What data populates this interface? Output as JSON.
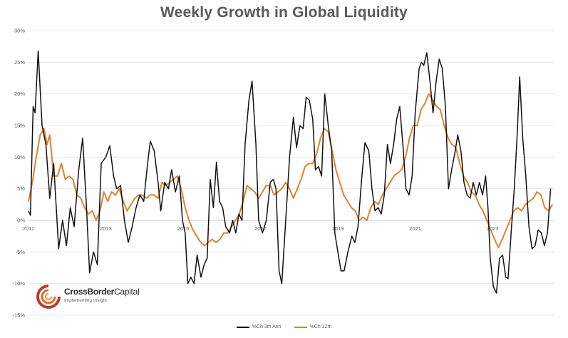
{
  "title": "Weekly Growth in Global Liquidity",
  "logo": {
    "name_bold": "CrossBorder",
    "name_light": "Capital",
    "tagline": "Implementing Insight"
  },
  "colors": {
    "series_3m": "#111111",
    "series_12m": "#e0812e",
    "logo_red": "#c0392b",
    "logo_orange": "#f0a050"
  },
  "chart_data": {
    "type": "line",
    "title": "Weekly Growth in Global Liquidity",
    "xlabel": "",
    "ylabel": "",
    "ylim": [
      -15,
      30
    ],
    "xlim": [
      2011,
      2024.6
    ],
    "y_tick_labels": [
      "-15%",
      "-10%",
      "-5%",
      "0%",
      "5%",
      "10%",
      "15%",
      "20%",
      "25%",
      "30%"
    ],
    "y_tick_values": [
      -15,
      -10,
      -5,
      0,
      5,
      10,
      15,
      20,
      25,
      30
    ],
    "x_tick_labels": [
      "2011",
      "2013",
      "2015",
      "2017",
      "2019",
      "2021",
      "2023"
    ],
    "x_tick_values": [
      2011,
      2013,
      2015,
      2017,
      2019,
      2021,
      2023
    ],
    "legend_position": "bottom-center",
    "grid": true,
    "series": [
      {
        "name": "%Ch 3m Ann",
        "color": "#111111",
        "points": [
          [
            2011.0,
            1.5
          ],
          [
            2011.05,
            0.8
          ],
          [
            2011.12,
            18
          ],
          [
            2011.17,
            17
          ],
          [
            2011.25,
            26.8
          ],
          [
            2011.35,
            15
          ],
          [
            2011.45,
            12
          ],
          [
            2011.55,
            3.5
          ],
          [
            2011.65,
            9
          ],
          [
            2011.78,
            -4.5
          ],
          [
            2011.88,
            0
          ],
          [
            2011.98,
            -4
          ],
          [
            2012.08,
            2
          ],
          [
            2012.18,
            -1
          ],
          [
            2012.3,
            8
          ],
          [
            2012.4,
            13
          ],
          [
            2012.5,
            2
          ],
          [
            2012.58,
            -8.3
          ],
          [
            2012.68,
            -5
          ],
          [
            2012.78,
            -7
          ],
          [
            2012.88,
            9
          ],
          [
            2013.0,
            10
          ],
          [
            2013.1,
            11.8
          ],
          [
            2013.2,
            7
          ],
          [
            2013.28,
            5
          ],
          [
            2013.38,
            5.5
          ],
          [
            2013.48,
            0
          ],
          [
            2013.58,
            -3.5
          ],
          [
            2013.68,
            -1
          ],
          [
            2013.78,
            2
          ],
          [
            2013.88,
            4
          ],
          [
            2013.98,
            3
          ],
          [
            2014.08,
            9
          ],
          [
            2014.15,
            12.5
          ],
          [
            2014.25,
            11
          ],
          [
            2014.35,
            6
          ],
          [
            2014.42,
            1.5
          ],
          [
            2014.52,
            6
          ],
          [
            2014.62,
            5
          ],
          [
            2014.7,
            8
          ],
          [
            2014.8,
            4.5
          ],
          [
            2014.9,
            7
          ],
          [
            2014.98,
            0
          ],
          [
            2015.05,
            -2
          ],
          [
            2015.12,
            -10
          ],
          [
            2015.2,
            -9
          ],
          [
            2015.28,
            -10
          ],
          [
            2015.36,
            -5.5
          ],
          [
            2015.46,
            -9
          ],
          [
            2015.54,
            -7
          ],
          [
            2015.62,
            -6
          ],
          [
            2015.7,
            6.5
          ],
          [
            2015.78,
            2
          ],
          [
            2015.86,
            9.2
          ],
          [
            2015.94,
            3
          ],
          [
            2016.02,
            2
          ],
          [
            2016.1,
            -1
          ],
          [
            2016.2,
            -2
          ],
          [
            2016.28,
            0
          ],
          [
            2016.36,
            -2
          ],
          [
            2016.44,
            1
          ],
          [
            2016.52,
            0
          ],
          [
            2016.6,
            12
          ],
          [
            2016.7,
            19
          ],
          [
            2016.78,
            22
          ],
          [
            2016.88,
            12
          ],
          [
            2016.95,
            0
          ],
          [
            2017.05,
            -2
          ],
          [
            2017.15,
            0
          ],
          [
            2017.25,
            6
          ],
          [
            2017.33,
            6.5
          ],
          [
            2017.4,
            5
          ],
          [
            2017.48,
            -8
          ],
          [
            2017.55,
            -10
          ],
          [
            2017.65,
            0
          ],
          [
            2017.75,
            10
          ],
          [
            2017.85,
            16.3
          ],
          [
            2017.93,
            11.5
          ],
          [
            2018.02,
            15
          ],
          [
            2018.1,
            14.5
          ],
          [
            2018.18,
            19.5
          ],
          [
            2018.26,
            19
          ],
          [
            2018.35,
            16
          ],
          [
            2018.42,
            8
          ],
          [
            2018.5,
            8.5
          ],
          [
            2018.58,
            7
          ],
          [
            2018.66,
            20
          ],
          [
            2018.75,
            15
          ],
          [
            2018.84,
            11
          ],
          [
            2018.92,
            -2
          ],
          [
            2019.0,
            -5
          ],
          [
            2019.08,
            -8
          ],
          [
            2019.16,
            -8
          ],
          [
            2019.26,
            -5
          ],
          [
            2019.36,
            -2.5
          ],
          [
            2019.44,
            -3.5
          ],
          [
            2019.52,
            -1
          ],
          [
            2019.62,
            7
          ],
          [
            2019.7,
            12.3
          ],
          [
            2019.8,
            11
          ],
          [
            2019.88,
            5
          ],
          [
            2019.96,
            1.5
          ],
          [
            2020.04,
            2
          ],
          [
            2020.12,
            1
          ],
          [
            2020.2,
            4
          ],
          [
            2020.28,
            12
          ],
          [
            2020.36,
            9
          ],
          [
            2020.44,
            12
          ],
          [
            2020.52,
            16
          ],
          [
            2020.6,
            18
          ],
          [
            2020.68,
            12
          ],
          [
            2020.76,
            5
          ],
          [
            2020.84,
            4
          ],
          [
            2020.92,
            7
          ],
          [
            2021.0,
            17
          ],
          [
            2021.1,
            24
          ],
          [
            2021.16,
            25
          ],
          [
            2021.22,
            24.5
          ],
          [
            2021.3,
            26.5
          ],
          [
            2021.38,
            22
          ],
          [
            2021.46,
            17
          ],
          [
            2021.54,
            22
          ],
          [
            2021.62,
            25.5
          ],
          [
            2021.7,
            24
          ],
          [
            2021.78,
            18
          ],
          [
            2021.86,
            5
          ],
          [
            2021.94,
            8
          ],
          [
            2022.02,
            10.5
          ],
          [
            2022.1,
            13.5
          ],
          [
            2022.18,
            11
          ],
          [
            2022.26,
            6
          ],
          [
            2022.34,
            4
          ],
          [
            2022.42,
            3.5
          ],
          [
            2022.5,
            6
          ],
          [
            2022.58,
            4
          ],
          [
            2022.66,
            6
          ],
          [
            2022.74,
            4
          ],
          [
            2022.82,
            7
          ],
          [
            2022.88,
            2
          ],
          [
            2022.94,
            -6
          ],
          [
            2023.02,
            -10.5
          ],
          [
            2023.1,
            -11.5
          ],
          [
            2023.18,
            -6
          ],
          [
            2023.26,
            -5.5
          ],
          [
            2023.34,
            -9
          ],
          [
            2023.4,
            -9.2
          ],
          [
            2023.48,
            -2
          ],
          [
            2023.56,
            5
          ],
          [
            2023.64,
            14
          ],
          [
            2023.7,
            22.7
          ],
          [
            2023.78,
            13
          ],
          [
            2023.86,
            7
          ],
          [
            2023.94,
            -1
          ],
          [
            2024.02,
            -4.5
          ],
          [
            2024.1,
            -4
          ],
          [
            2024.18,
            -1.5
          ],
          [
            2024.26,
            -2
          ],
          [
            2024.34,
            -4
          ],
          [
            2024.42,
            -2
          ],
          [
            2024.5,
            5
          ]
        ]
      },
      {
        "name": "%Ch 12m",
        "color": "#e0812e",
        "points": [
          [
            2011.0,
            3
          ],
          [
            2011.1,
            6
          ],
          [
            2011.2,
            10
          ],
          [
            2011.3,
            13.5
          ],
          [
            2011.4,
            14.5
          ],
          [
            2011.48,
            12
          ],
          [
            2011.55,
            13.5
          ],
          [
            2011.65,
            7
          ],
          [
            2011.75,
            7
          ],
          [
            2011.85,
            9
          ],
          [
            2011.95,
            6.5
          ],
          [
            2012.05,
            7
          ],
          [
            2012.15,
            6.5
          ],
          [
            2012.25,
            4
          ],
          [
            2012.35,
            3.5
          ],
          [
            2012.45,
            2
          ],
          [
            2012.55,
            1
          ],
          [
            2012.65,
            1.5
          ],
          [
            2012.75,
            0
          ],
          [
            2012.85,
            1.5
          ],
          [
            2012.95,
            4.5
          ],
          [
            2013.05,
            3
          ],
          [
            2013.15,
            4.5
          ],
          [
            2013.25,
            4
          ],
          [
            2013.35,
            5
          ],
          [
            2013.45,
            3
          ],
          [
            2013.55,
            1.5
          ],
          [
            2013.65,
            2.5
          ],
          [
            2013.75,
            3.5
          ],
          [
            2013.85,
            4
          ],
          [
            2013.95,
            4
          ],
          [
            2014.05,
            3.5
          ],
          [
            2014.15,
            4
          ],
          [
            2014.25,
            4
          ],
          [
            2014.35,
            3.5
          ],
          [
            2014.45,
            6
          ],
          [
            2014.55,
            5.5
          ],
          [
            2014.65,
            6
          ],
          [
            2014.75,
            6.5
          ],
          [
            2014.85,
            7
          ],
          [
            2014.95,
            5
          ],
          [
            2015.05,
            2
          ],
          [
            2015.15,
            0
          ],
          [
            2015.25,
            -1.5
          ],
          [
            2015.35,
            -2.5
          ],
          [
            2015.45,
            -3.5
          ],
          [
            2015.55,
            -4
          ],
          [
            2015.65,
            -3.5
          ],
          [
            2015.75,
            -3
          ],
          [
            2015.85,
            -3.5
          ],
          [
            2015.95,
            -3
          ],
          [
            2016.05,
            -2
          ],
          [
            2016.15,
            -2
          ],
          [
            2016.25,
            -1
          ],
          [
            2016.35,
            0
          ],
          [
            2016.45,
            1
          ],
          [
            2016.55,
            3
          ],
          [
            2016.65,
            5.5
          ],
          [
            2016.75,
            5
          ],
          [
            2016.85,
            4.5
          ],
          [
            2016.95,
            3.5
          ],
          [
            2017.05,
            4.5
          ],
          [
            2017.15,
            5.5
          ],
          [
            2017.25,
            5.5
          ],
          [
            2017.35,
            4
          ],
          [
            2017.45,
            4.5
          ],
          [
            2017.55,
            5
          ],
          [
            2017.65,
            6
          ],
          [
            2017.75,
            5
          ],
          [
            2017.85,
            3.5
          ],
          [
            2017.95,
            5
          ],
          [
            2018.05,
            6.5
          ],
          [
            2018.15,
            8.5
          ],
          [
            2018.25,
            9
          ],
          [
            2018.35,
            9
          ],
          [
            2018.45,
            10.5
          ],
          [
            2018.55,
            13
          ],
          [
            2018.65,
            14.5
          ],
          [
            2018.75,
            14
          ],
          [
            2018.85,
            11
          ],
          [
            2018.95,
            8
          ],
          [
            2019.05,
            6
          ],
          [
            2019.15,
            4
          ],
          [
            2019.25,
            3
          ],
          [
            2019.35,
            2
          ],
          [
            2019.45,
            1.5
          ],
          [
            2019.55,
            0
          ],
          [
            2019.65,
            0.5
          ],
          [
            2019.75,
            0
          ],
          [
            2019.85,
            2
          ],
          [
            2019.95,
            3
          ],
          [
            2020.05,
            2.5
          ],
          [
            2020.15,
            4
          ],
          [
            2020.25,
            5
          ],
          [
            2020.35,
            6
          ],
          [
            2020.45,
            7
          ],
          [
            2020.55,
            7.5
          ],
          [
            2020.65,
            8
          ],
          [
            2020.75,
            10
          ],
          [
            2020.85,
            13
          ],
          [
            2020.95,
            15
          ],
          [
            2021.05,
            15
          ],
          [
            2021.15,
            17.5
          ],
          [
            2021.25,
            18.5
          ],
          [
            2021.35,
            20
          ],
          [
            2021.45,
            19
          ],
          [
            2021.55,
            18
          ],
          [
            2021.65,
            17.5
          ],
          [
            2021.75,
            15
          ],
          [
            2021.85,
            13
          ],
          [
            2021.95,
            12
          ],
          [
            2022.05,
            11.5
          ],
          [
            2022.15,
            9
          ],
          [
            2022.25,
            7
          ],
          [
            2022.35,
            6
          ],
          [
            2022.45,
            4.5
          ],
          [
            2022.55,
            4
          ],
          [
            2022.65,
            2.5
          ],
          [
            2022.75,
            1.5
          ],
          [
            2022.85,
            0
          ],
          [
            2022.95,
            -1.5
          ],
          [
            2023.05,
            -3
          ],
          [
            2023.15,
            -4.3
          ],
          [
            2023.25,
            -3
          ],
          [
            2023.35,
            -1.5
          ],
          [
            2023.45,
            0
          ],
          [
            2023.55,
            1.5
          ],
          [
            2023.65,
            2
          ],
          [
            2023.75,
            1.5
          ],
          [
            2023.85,
            2.5
          ],
          [
            2023.95,
            3
          ],
          [
            2024.05,
            3.5
          ],
          [
            2024.15,
            4.5
          ],
          [
            2024.25,
            4
          ],
          [
            2024.35,
            2
          ],
          [
            2024.45,
            1.5
          ],
          [
            2024.55,
            2.5
          ]
        ]
      }
    ]
  }
}
